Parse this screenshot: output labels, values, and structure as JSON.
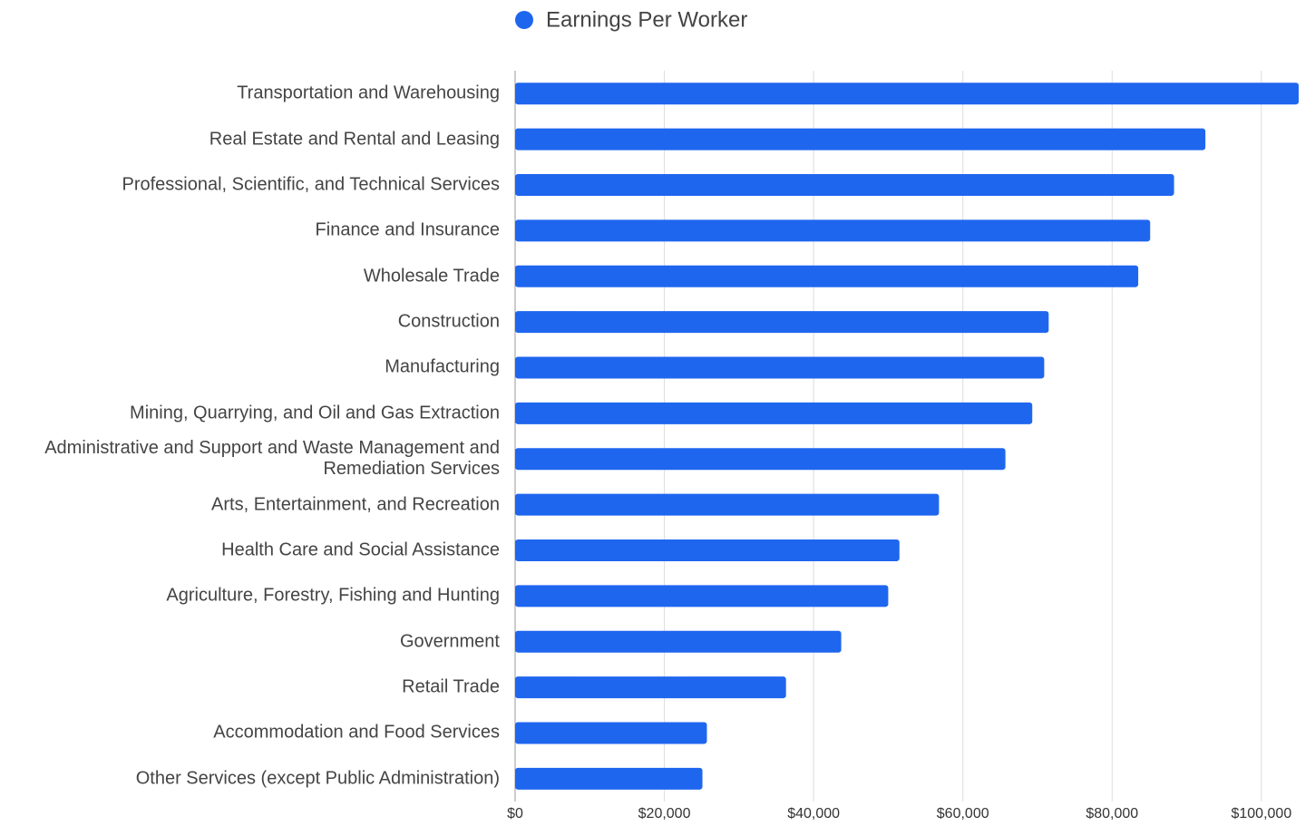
{
  "chart_data": {
    "type": "bar",
    "orientation": "horizontal",
    "legend": "top",
    "series": [
      {
        "name": "Earnings Per Worker",
        "color": "#1f66ef",
        "values": [
          105000,
          92500,
          88300,
          85100,
          83500,
          71500,
          70900,
          69300,
          65700,
          56800,
          51500,
          50000,
          43700,
          36300,
          25700,
          25100
        ]
      }
    ],
    "categories": [
      "Transportation and Warehousing",
      "Real Estate and Rental and Leasing",
      "Professional, Scientific, and Technical Services",
      "Finance and Insurance",
      "Wholesale Trade",
      "Construction",
      "Manufacturing",
      "Mining, Quarrying, and Oil and Gas Extraction",
      "Administrative and Support and Waste Management and Remediation Services",
      "Arts, Entertainment, and Recreation",
      "Health Care and Social Assistance",
      "Agriculture, Forestry, Fishing and Hunting",
      "Government",
      "Retail Trade",
      "Accommodation and Food Services",
      "Other Services (except Public Administration)"
    ],
    "xlim": [
      0,
      105000
    ],
    "xticks": [
      {
        "value": 0,
        "label": "$0"
      },
      {
        "value": 20000,
        "label": "$20,000"
      },
      {
        "value": 40000,
        "label": "$40,000"
      },
      {
        "value": 60000,
        "label": "$60,000"
      },
      {
        "value": 80000,
        "label": "$80,000"
      },
      {
        "value": 100000,
        "label": "$100,000"
      }
    ],
    "grid": true
  }
}
